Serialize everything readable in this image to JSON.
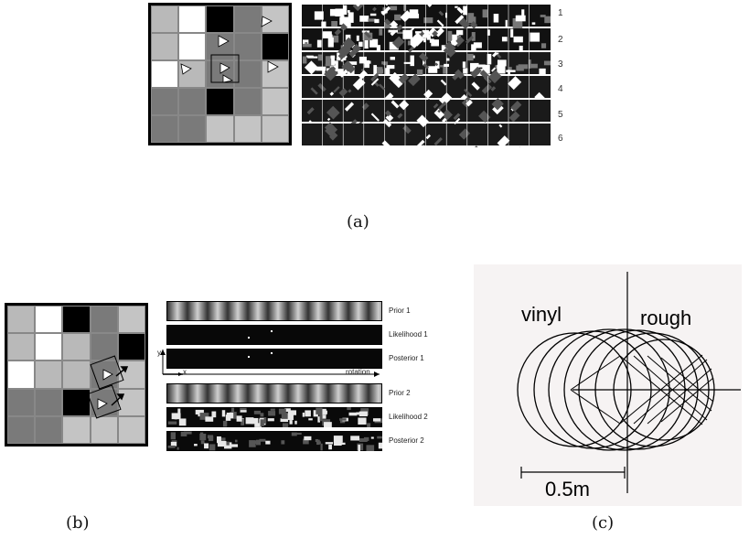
{
  "panel_a": {
    "caption": "(a)",
    "row_labels": [
      "1",
      "2",
      "3",
      "4",
      "5",
      "6"
    ],
    "grid_colors": [
      [
        "#b9b9b9",
        "#ffffff",
        "#000000",
        "#7a7a7a",
        "#c4c4c4"
      ],
      [
        "#b9b9b9",
        "#ffffff",
        "#7a7a7a",
        "#7a7a7a",
        "#000000"
      ],
      [
        "#ffffff",
        "#b9b9b9",
        "#7a7a7a",
        "#7a7a7a",
        "#c4c4c4"
      ],
      [
        "#7a7a7a",
        "#7a7a7a",
        "#000000",
        "#7a7a7a",
        "#c4c4c4"
      ],
      [
        "#7a7a7a",
        "#7a7a7a",
        "#c4c4c4",
        "#c4c4c4",
        "#c4c4c4"
      ]
    ]
  },
  "panel_b": {
    "caption": "(b)",
    "band_labels": [
      "Prior 1",
      "Likelihood 1",
      "Posterior 1",
      "Prior 2",
      "Likelihood 2",
      "Posterior 2"
    ],
    "axis_x": "x",
    "axis_y": "y",
    "axis_rotation": "rotation",
    "grid_colors": [
      [
        "#b9b9b9",
        "#ffffff",
        "#000000",
        "#7a7a7a",
        "#c4c4c4"
      ],
      [
        "#b9b9b9",
        "#ffffff",
        "#b9b9b9",
        "#7a7a7a",
        "#000000"
      ],
      [
        "#ffffff",
        "#b9b9b9",
        "#b9b9b9",
        "#7a7a7a",
        "#c4c4c4"
      ],
      [
        "#7a7a7a",
        "#7a7a7a",
        "#000000",
        "#7a7a7a",
        "#c4c4c4"
      ],
      [
        "#7a7a7a",
        "#7a7a7a",
        "#c4c4c4",
        "#c4c4c4",
        "#c4c4c4"
      ]
    ]
  },
  "panel_c": {
    "caption": "(c)",
    "label_left": "vinyl",
    "label_right": "rough",
    "scale_label": "0.5m"
  }
}
